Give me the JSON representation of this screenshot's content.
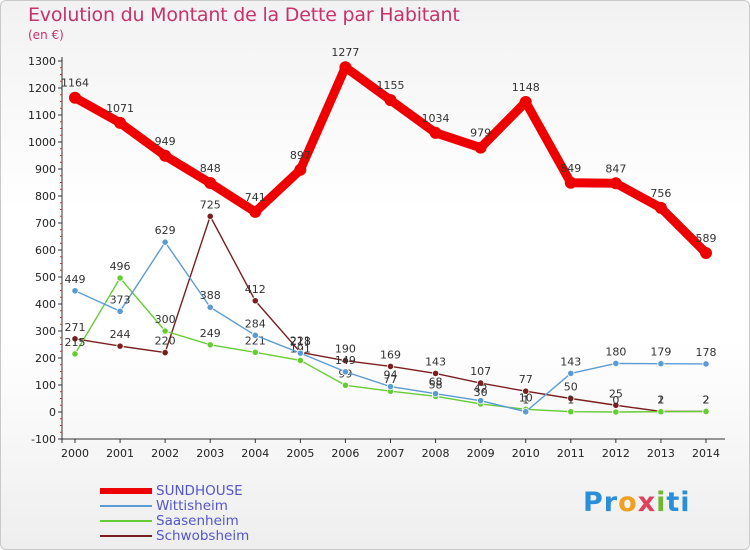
{
  "header": {
    "title": "Evolution du Montant de la Dette par Habitant",
    "subtitle": "(en €)"
  },
  "logo": {
    "text": "Proxiti",
    "letters": [
      "P",
      "r",
      "o",
      "x",
      "i",
      "ti"
    ]
  },
  "chart_data": {
    "type": "line",
    "title": "Evolution du Montant de la Dette par Habitant",
    "ylabel": "(en €)",
    "xlabel": "",
    "ylim": [
      -100,
      1300
    ],
    "ytick_step": 100,
    "grid": false,
    "legend_position": "bottom-left",
    "x": [
      2000,
      2001,
      2002,
      2003,
      2004,
      2005,
      2006,
      2007,
      2008,
      2009,
      2010,
      2011,
      2012,
      2013,
      2014
    ],
    "series": [
      {
        "name": "SUNDHOUSE",
        "color": "#ee0000",
        "values": [
          1164,
          1071,
          949,
          848,
          741,
          897,
          1277,
          1155,
          1034,
          979,
          1148,
          849,
          847,
          756,
          589
        ]
      },
      {
        "name": "Wittisheim",
        "color": "#5b9bd5",
        "values": [
          449,
          373,
          629,
          388,
          284,
          218,
          149,
          94,
          68,
          42,
          1,
          143,
          180,
          179,
          178
        ]
      },
      {
        "name": "Saasenheim",
        "color": "#66cc33",
        "values": [
          215,
          496,
          300,
          249,
          221,
          191,
          99,
          77,
          58,
          30,
          10,
          1,
          0,
          1,
          2
        ]
      },
      {
        "name": "Schwobsheim",
        "color": "#7a1f1f",
        "values": [
          271,
          244,
          220,
          725,
          412,
          221,
          190,
          169,
          143,
          107,
          77,
          50,
          25,
          2,
          2
        ]
      }
    ]
  }
}
